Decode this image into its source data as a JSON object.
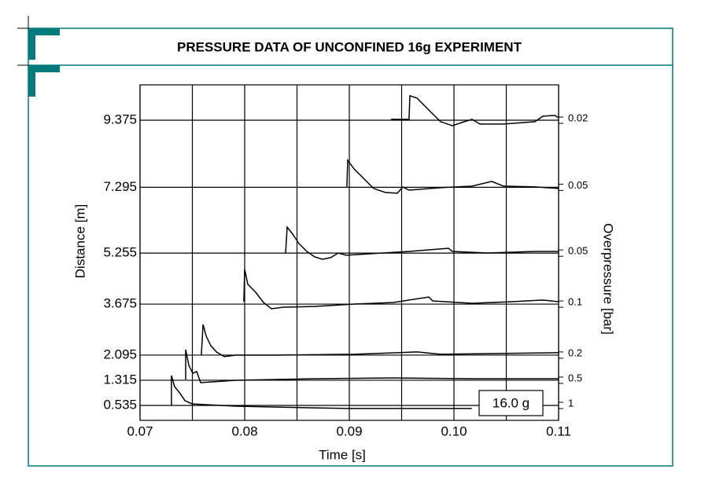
{
  "chart_data": {
    "type": "line",
    "title": "PRESSURE DATA OF UNCONFINED 16g EXPERIMENT",
    "x_label": "Time [s]",
    "y_label": "Distance [m]",
    "y2_label": "Overpressure [bar]",
    "annotation": "16.0 g",
    "xlim": [
      0.07,
      0.11
    ],
    "xticks": [
      0.07,
      0.08,
      0.09,
      {
        "value": 0.1,
        "label": "0.10"
      },
      0.11
    ],
    "x_minor_grid": [
      0.075,
      0.085,
      0.095,
      0.105
    ],
    "ylim": [
      0.072,
      10.47
    ],
    "yticks": [
      0.535,
      1.315,
      2.095,
      3.675,
      5.255,
      7.295,
      9.375
    ],
    "grid": true,
    "series": [
      {
        "color": "#000000",
        "scale": 1,
        "x": [
          0.073,
          0.073,
          0.0733,
          0.0738,
          0.0743,
          0.075,
          0.0792,
          0.0867,
          0.09,
          0.1017
        ],
        "values": [
          0.535,
          1.46,
          1.12,
          0.92,
          0.68,
          0.58,
          0.51,
          0.46,
          0.44,
          0.44
        ]
      },
      {
        "color": "#000000",
        "scale": 0.5,
        "x": [
          0.07436,
          0.07436,
          0.07466,
          0.07504,
          0.07541,
          0.07579,
          0.07692,
          0.07917,
          0.08669,
          0.09421,
          0.10173,
          0.11
        ],
        "values": [
          1.339,
          2.264,
          1.777,
          1.534,
          1.583,
          1.241,
          1.266,
          1.314,
          1.363,
          1.388,
          1.363,
          1.363
        ]
      },
      {
        "color": "#000000",
        "scale": 0.2,
        "x": [
          0.07586,
          0.07602,
          0.07632,
          0.07677,
          0.07729,
          0.07805,
          0.07917,
          0.08293,
          0.09045,
          0.09647,
          0.09872,
          0.11
        ],
        "values": [
          2.094,
          3.044,
          2.679,
          2.387,
          2.192,
          2.046,
          2.094,
          2.094,
          2.119,
          2.192,
          2.119,
          2.168
        ]
      },
      {
        "color": "#000000",
        "scale": 0.1,
        "x": [
          0.07992,
          0.08,
          0.0803,
          0.08105,
          0.0818,
          0.08256,
          0.08368,
          0.08669,
          0.09045,
          0.09421,
          0.09759,
          0.09797,
          0.10173,
          0.1055,
          0.1085,
          0.11
        ],
        "values": [
          3.75,
          4.748,
          4.286,
          4.042,
          3.725,
          3.531,
          3.579,
          3.604,
          3.677,
          3.725,
          3.896,
          3.774,
          3.701,
          3.75,
          3.799,
          3.75
        ]
      },
      {
        "color": "#000000",
        "scale": 0.05,
        "x": [
          0.08391,
          0.08406,
          0.08459,
          0.08519,
          0.08594,
          0.08669,
          0.08744,
          0.0882,
          0.08895,
          0.0897,
          0.09195,
          0.09571,
          0.09947,
          0.09985,
          0.10323,
          0.10774,
          0.11
        ],
        "values": [
          5.26,
          6.06,
          5.844,
          5.552,
          5.308,
          5.138,
          5.065,
          5.114,
          5.26,
          5.187,
          5.235,
          5.308,
          5.406,
          5.308,
          5.26,
          5.308,
          5.308
        ]
      },
      {
        "color": "#000000",
        "scale": 0.05,
        "x": [
          0.08977,
          0.08985,
          0.09045,
          0.0912,
          0.09233,
          0.09346,
          0.09459,
          0.09511,
          0.09571,
          0.09872,
          0.10173,
          0.10361,
          0.10474,
          0.10774,
          0.11
        ],
        "values": [
          7.306,
          8.134,
          7.867,
          7.623,
          7.257,
          7.135,
          7.111,
          7.306,
          7.208,
          7.282,
          7.33,
          7.477,
          7.33,
          7.306,
          7.257
        ]
      },
      {
        "color": "#000000",
        "scale": 0.02,
        "x": [
          0.09398,
          0.09571,
          0.09579,
          0.09647,
          0.09759,
          0.09872,
          0.09985,
          0.10098,
          0.10173,
          0.10248,
          0.10474,
          0.10774,
          0.1085,
          0.10962,
          0.11
        ],
        "values": [
          9.4,
          9.4,
          10.131,
          10.058,
          9.692,
          9.327,
          9.205,
          9.327,
          9.4,
          9.254,
          9.254,
          9.327,
          9.498,
          9.522,
          9.449
        ]
      }
    ]
  }
}
